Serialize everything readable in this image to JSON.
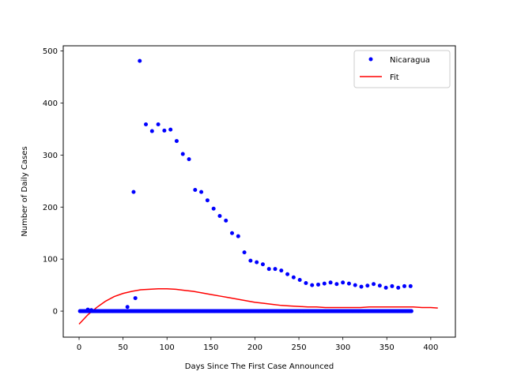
{
  "chart_data": {
    "type": "scatter",
    "title": "",
    "xlabel": "Days Since The First Case Announced",
    "ylabel": "Number of Daily Cases",
    "xlim": [
      -18,
      428
    ],
    "ylim": [
      -50,
      510
    ],
    "xticks": [
      0,
      50,
      100,
      150,
      200,
      250,
      300,
      350,
      400
    ],
    "yticks": [
      0,
      100,
      200,
      300,
      400,
      500
    ],
    "grid": false,
    "legend": {
      "placement": "top-right",
      "entries": [
        "Nicaragua",
        "Fit"
      ]
    },
    "series": [
      {
        "name": "Nicaragua",
        "kind": "scatter",
        "color": "#0000ff",
        "zero_run": {
          "from": 1,
          "to": 378,
          "value": 0
        },
        "points": [
          [
            10,
            3
          ],
          [
            14,
            2
          ],
          [
            55,
            8
          ],
          [
            62,
            229
          ],
          [
            64,
            25
          ],
          [
            69,
            481
          ],
          [
            76,
            359
          ],
          [
            83,
            346
          ],
          [
            90,
            359
          ],
          [
            97,
            347
          ],
          [
            104,
            349
          ],
          [
            111,
            327
          ],
          [
            118,
            302
          ],
          [
            125,
            292
          ],
          [
            132,
            233
          ],
          [
            139,
            229
          ],
          [
            146,
            213
          ],
          [
            153,
            197
          ],
          [
            160,
            183
          ],
          [
            167,
            174
          ],
          [
            174,
            150
          ],
          [
            181,
            144
          ],
          [
            188,
            113
          ],
          [
            195,
            97
          ],
          [
            202,
            94
          ],
          [
            209,
            90
          ],
          [
            216,
            81
          ],
          [
            223,
            81
          ],
          [
            230,
            78
          ],
          [
            237,
            71
          ],
          [
            244,
            65
          ],
          [
            251,
            60
          ],
          [
            258,
            54
          ],
          [
            265,
            50
          ],
          [
            272,
            51
          ],
          [
            279,
            53
          ],
          [
            286,
            55
          ],
          [
            293,
            52
          ],
          [
            300,
            55
          ],
          [
            307,
            53
          ],
          [
            314,
            50
          ],
          [
            321,
            47
          ],
          [
            328,
            49
          ],
          [
            335,
            52
          ],
          [
            342,
            49
          ],
          [
            349,
            45
          ],
          [
            356,
            48
          ],
          [
            363,
            45
          ],
          [
            370,
            48
          ],
          [
            377,
            48
          ]
        ]
      },
      {
        "name": "Fit",
        "kind": "line",
        "color": "#ff0000",
        "points": [
          [
            0,
            -25
          ],
          [
            10,
            -7
          ],
          [
            20,
            7
          ],
          [
            30,
            19
          ],
          [
            40,
            28
          ],
          [
            50,
            34
          ],
          [
            60,
            38
          ],
          [
            70,
            41
          ],
          [
            80,
            42
          ],
          [
            90,
            43
          ],
          [
            100,
            43
          ],
          [
            110,
            42
          ],
          [
            120,
            40
          ],
          [
            130,
            38
          ],
          [
            140,
            35
          ],
          [
            150,
            32
          ],
          [
            160,
            29
          ],
          [
            170,
            26
          ],
          [
            180,
            23
          ],
          [
            190,
            20
          ],
          [
            200,
            17
          ],
          [
            210,
            15
          ],
          [
            220,
            13
          ],
          [
            230,
            11
          ],
          [
            240,
            10
          ],
          [
            250,
            9
          ],
          [
            260,
            8
          ],
          [
            270,
            8
          ],
          [
            280,
            7
          ],
          [
            290,
            7
          ],
          [
            300,
            7
          ],
          [
            310,
            7
          ],
          [
            320,
            7
          ],
          [
            330,
            8
          ],
          [
            340,
            8
          ],
          [
            350,
            8
          ],
          [
            360,
            8
          ],
          [
            370,
            8
          ],
          [
            380,
            8
          ],
          [
            390,
            7
          ],
          [
            400,
            7
          ],
          [
            408,
            6
          ]
        ]
      }
    ]
  }
}
